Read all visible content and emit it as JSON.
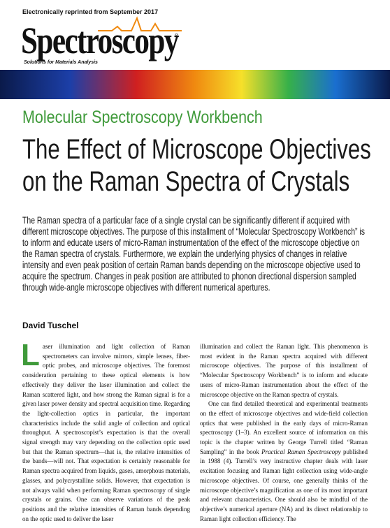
{
  "reprint_note": "Electronically reprinted from September 2017",
  "masthead": {
    "logo": "Spectroscopy",
    "registered": "®",
    "tagline": "Solutions for Materials Analysis"
  },
  "section": "Molecular Spectroscopy Workbench",
  "title": [
    "The Effect of Microscope Objectives",
    "on the Raman Spectra of Crystals"
  ],
  "abstract": "The Raman spectra of a particular face of a single crystal can be significantly different if acquired with different microscope objectives. The purpose of this installment of “Molecular Spectroscopy Workbench” is to inform and educate users of micro-Raman instrumentation of the effect of the microscope objective on the Raman spectra of crystals. Furthermore, we explain the underlying physics of changes in relative intensity and even peak position of certain Raman bands depending on the microscope objective used to acquire the spectrum. Changes in peak position are attributed to phonon directional dispersion sampled through wide-angle microscope objectives with different numerical apertures.",
  "author": "David Tuschel",
  "body": {
    "drop_cap": "L",
    "column_1": "aser illumination and light collection of Raman spectrometers can involve mirrors, simple lenses, fiber-optic probes, and microscope objectives. The foremost consideration pertaining to these optical elements is how effectively they deliver the laser illumination and collect the Raman scattered light, and how strong the Raman signal is for a given laser power density and spectral acquisition time. Regarding the light-collection optics in particular, the important characteristics include the solid angle of collection and optical throughput. A spectroscopist’s expectation is that the overall signal strength may vary depending on the collection optic used but that the Raman spectrum—that is, the relative intensities of the bands—will not. That expectation is certainly reasonable for Raman spectra acquired from liquids, gases, amorphous materials, glasses, and polycrystalline solids. However, that expectation is not always valid when performing Raman spectroscopy of single crystals or grains. One can observe variations of the peak positions and the relative intensities of Raman bands depending on the optic used to deliver the laser",
    "column_2_paragraph_1": "illumination and collect the Raman light. This phenomenon is most evident in the Raman spectra acquired with different microscope objectives. The purpose of this installment of “Molecular Spectroscopy Workbench” is to inform and educate users of micro-Raman instrumentation about the effect of the microscope objective on the Raman spectra of crystals.",
    "column_2_paragraph_2": [
      "One can find detailed theoretical and experimental treatments on the effect of microscope objectives and wide-field collection optics that were published in the early days of micro-Raman spectroscopy (1–3). An excellent source of information on this topic is the chapter written by George Turrell titled “Raman Sampling” in the book ",
      "Practical Raman Spectroscopy",
      " published in 1988 (4). Turrell’s very instructive chapter deals with laser excitation focusing and Raman light collection using wide-angle microscope objectives. Of course, one generally thinks of the microscope objective’s magnification as one of its most important and relevant characteristics. One should also be mindful of the objective’s numerical aperture (NA) and its direct relationship to Raman light collection efficiency. The"
    ]
  }
}
